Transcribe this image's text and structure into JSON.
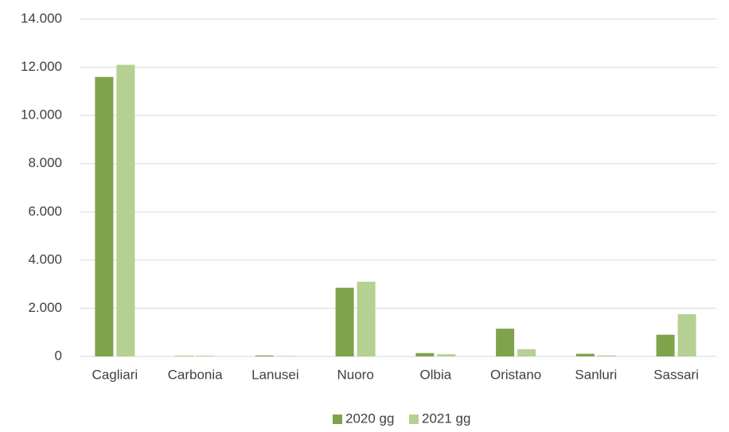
{
  "chart_data": {
    "type": "bar",
    "categories": [
      "Cagliari",
      "Carbonia",
      "Lanusei",
      "Nuoro",
      "Olbia",
      "Oristano",
      "Sanluri",
      "Sassari"
    ],
    "series": [
      {
        "name": "2020 gg",
        "color": "#7fa34b",
        "values": [
          11600,
          20,
          40,
          2850,
          140,
          1150,
          110,
          900
        ]
      },
      {
        "name": "2021 gg",
        "color": "#b6cf92",
        "values": [
          12100,
          30,
          20,
          3100,
          90,
          300,
          40,
          1750
        ]
      }
    ],
    "ylim": [
      0,
      14000
    ],
    "yticks": [
      0,
      {
        "value": 2000,
        "label": "2.000"
      },
      {
        "value": 4000,
        "label": "4.000"
      },
      {
        "value": 6000,
        "label": "6.000"
      },
      {
        "value": 8000,
        "label": "8.000"
      },
      {
        "value": 10000,
        "label": "10.000"
      },
      {
        "value": 12000,
        "label": "12.000"
      },
      {
        "value": 14000,
        "label": "14.000"
      }
    ],
    "grid": true,
    "legend": "bottom"
  }
}
